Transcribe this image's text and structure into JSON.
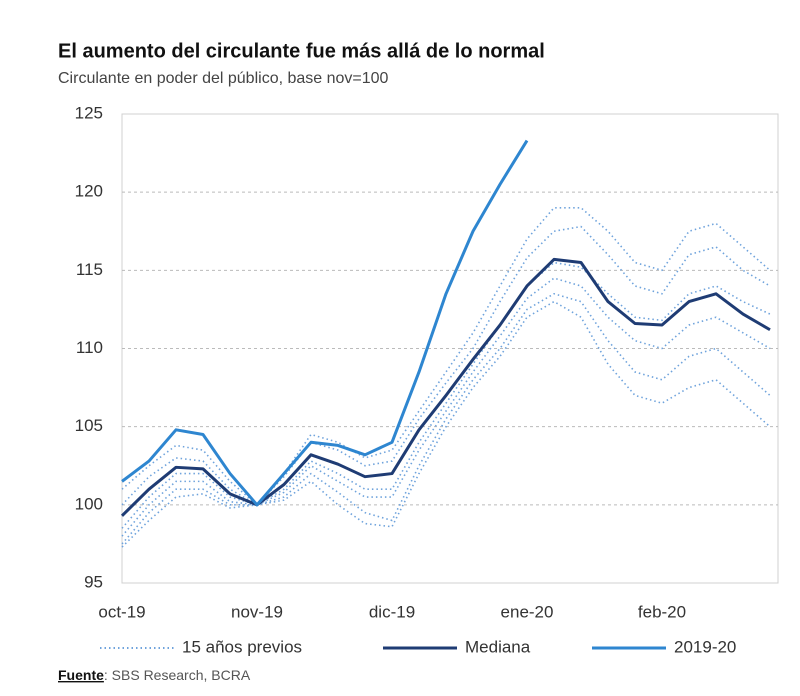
{
  "chart_data": {
    "type": "line",
    "title": "El aumento del circulante fue más allá de lo normal",
    "subtitle": "Circulante en poder del público, base nov=100",
    "source_label": "Fuente",
    "source": ": SBS Research, BCRA",
    "categories": [
      "oct-19",
      null,
      null,
      null,
      null,
      "nov-19",
      null,
      null,
      null,
      null,
      "dic-19",
      null,
      null,
      null,
      null,
      "ene-20",
      null,
      null,
      null,
      null,
      "feb-20",
      null,
      null,
      null,
      null
    ],
    "ylim": [
      95,
      125
    ],
    "yticks": [
      95,
      100,
      105,
      110,
      115,
      120,
      125
    ],
    "grid": true,
    "series": [
      {
        "name": "15 años previos",
        "color": "#6fa3dc",
        "style": "dotted",
        "values": [
          [
            101,
            102.5,
            103.8,
            103.5,
            101.5,
            100,
            102,
            104.5,
            104,
            103,
            103.5,
            106,
            108.5,
            111,
            114,
            117,
            119,
            119,
            117.5,
            115.5,
            115,
            117.5,
            118,
            116.5,
            115
          ],
          [
            100,
            101.8,
            103,
            102.8,
            101,
            100,
            101.8,
            104,
            103.5,
            102.5,
            102.8,
            105.5,
            107.8,
            110,
            113,
            115.8,
            117.5,
            117.8,
            116,
            114,
            113.5,
            116,
            116.5,
            115,
            114
          ],
          [
            98.5,
            100.5,
            102,
            102,
            100.5,
            100,
            101,
            102.8,
            102,
            101,
            101,
            104,
            106.5,
            109,
            111.5,
            114,
            115.5,
            115.2,
            113.5,
            112,
            111.8,
            113.5,
            114,
            113,
            112.2
          ],
          [
            98,
            100,
            101.5,
            101.5,
            100.2,
            100,
            100.8,
            102.5,
            101.5,
            100.5,
            100.5,
            103.5,
            106,
            108.5,
            110.8,
            113.2,
            114.5,
            114,
            112,
            110.5,
            110,
            111.5,
            112,
            111,
            110
          ],
          [
            97.5,
            99.5,
            101,
            101,
            100,
            100,
            100.5,
            102,
            100.8,
            99.5,
            99,
            102.5,
            105.5,
            108,
            110,
            112.5,
            113.5,
            113,
            110.5,
            108.5,
            108,
            109.5,
            110,
            108.5,
            107
          ],
          [
            97.3,
            99,
            100.5,
            100.7,
            99.8,
            100,
            100.3,
            101.5,
            100,
            98.8,
            98.6,
            102,
            105,
            107.5,
            109.5,
            112,
            113,
            112,
            109,
            107,
            106.5,
            107.5,
            108,
            106.5,
            105
          ]
        ]
      },
      {
        "name": "Mediana",
        "color": "#1f3c74",
        "style": "solid",
        "values": [
          99.3,
          101,
          102.4,
          102.3,
          100.7,
          100,
          101.3,
          103.2,
          102.6,
          101.8,
          102,
          104.8,
          107,
          109.3,
          111.5,
          114,
          115.7,
          115.5,
          113,
          111.6,
          111.5,
          113,
          113.5,
          112.2,
          111.2
        ]
      },
      {
        "name": "2019-20",
        "color": "#2e86d0",
        "style": "solid",
        "values": [
          101.5,
          102.8,
          104.8,
          104.5,
          102,
          100,
          102,
          104,
          103.8,
          103.2,
          104,
          108.5,
          113.5,
          117.5,
          120.5,
          123.3,
          null,
          null,
          null,
          null,
          null,
          null,
          null,
          null,
          null
        ]
      }
    ]
  }
}
